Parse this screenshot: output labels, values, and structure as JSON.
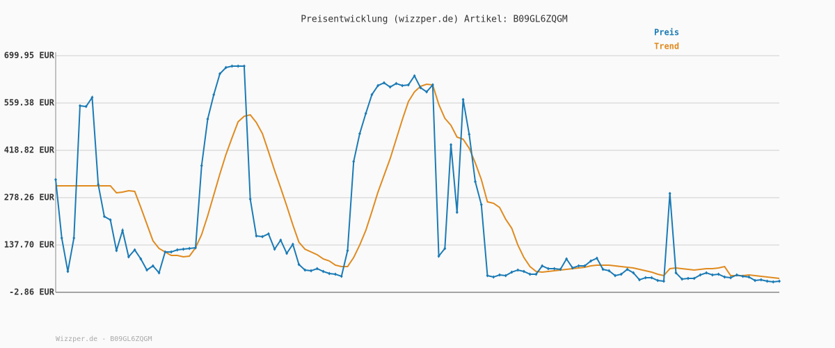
{
  "chart_data": {
    "type": "line",
    "title": "Preisentwicklung (wizzper.de) Artikel: B09GL6ZQGM",
    "footer": "Wizzper.de - B09GL6ZQGM",
    "grid": true,
    "legend": "top-right",
    "categories": [
      null,
      null,
      null,
      null,
      null,
      null,
      null,
      null,
      null,
      null,
      null,
      null,
      null,
      null,
      null,
      null,
      null,
      null,
      null,
      null,
      null,
      null,
      null,
      null,
      null,
      null,
      null,
      null,
      null,
      null,
      null,
      null,
      null,
      null,
      null,
      null,
      null,
      null,
      null,
      null,
      null,
      null,
      null,
      null,
      null,
      null,
      null,
      null,
      null,
      null,
      null,
      null,
      null,
      null,
      null,
      null,
      null,
      null,
      null,
      null,
      null,
      null,
      null,
      null,
      null,
      null,
      null,
      null,
      null,
      null,
      null,
      null,
      null,
      null,
      null,
      null,
      null,
      null,
      null,
      null,
      null,
      null,
      null,
      null,
      null,
      null,
      null,
      null,
      null,
      null,
      null,
      null,
      null,
      null,
      null,
      null,
      null,
      null,
      null,
      null,
      null,
      null,
      null,
      null,
      null,
      null,
      null,
      null,
      null,
      null,
      null,
      null,
      null,
      null,
      null,
      null,
      null,
      null,
      null,
      null
    ],
    "ylim": [
      -2.86,
      699.95
    ],
    "yticks": [
      {
        "value": -2.86,
        "label": "-2.86 EUR"
      },
      {
        "value": 137.7,
        "label": "137.70 EUR"
      },
      {
        "value": 278.26,
        "label": "278.26 EUR"
      },
      {
        "value": 418.82,
        "label": "418.82 EUR"
      },
      {
        "value": 559.38,
        "label": "559.38 EUR"
      },
      {
        "value": 699.95,
        "label": "699.95 EUR"
      }
    ],
    "series": [
      {
        "name": "Preis",
        "color": "#1a7ab5",
        "markers": true,
        "values": [
          332.0,
          158.4,
          59.2,
          158.4,
          551.1,
          549.0,
          575.9,
          317.5,
          222.4,
          212.1,
          121.2,
          181.1,
          102.6,
          123.2,
          96.4,
          63.3,
          75.7,
          55.0,
          117.0,
          117.0,
          123.2,
          125.3,
          127.4,
          129.4,
          373.3,
          511.8,
          584.2,
          646.2,
          664.8,
          668.9,
          668.9,
          668.9,
          274.1,
          164.6,
          162.5,
          170.8,
          125.3,
          152.2,
          112.9,
          139.8,
          79.8,
          63.3,
          61.2,
          67.4,
          59.2,
          53.0,
          50.9,
          44.7,
          121.2,
          385.7,
          468.4,
          528.4,
          584.2,
          611.1,
          619.3,
          606.9,
          617.3,
          611.1,
          613.1,
          640.0,
          604.8,
          592.5,
          613.1,
          104.6,
          127.4,
          435.4,
          234.8,
          569.7,
          466.4,
          325.8,
          257.6,
          46.7,
          42.6,
          48.8,
          46.7,
          57.1,
          63.3,
          59.2,
          50.9,
          50.9,
          75.7,
          67.4,
          67.4,
          65.4,
          96.4,
          69.5,
          75.7,
          75.7,
          90.2,
          98.4,
          65.4,
          61.2,
          46.7,
          50.9,
          65.4,
          55.0,
          34.3,
          40.6,
          40.6,
          32.3,
          30.2,
          290.7,
          55.0,
          36.4,
          38.5,
          38.5,
          48.8,
          55.0,
          48.8,
          50.9,
          42.6,
          40.6,
          48.8,
          44.7,
          42.6,
          32.3,
          34.3,
          30.2,
          28.1,
          30.2
        ]
      },
      {
        "name": "Trend",
        "color": "#e08a1e",
        "markers": false,
        "values": [
          313.4,
          313.4,
          313.4,
          313.4,
          313.4,
          313.4,
          313.4,
          313.4,
          313.4,
          313.4,
          292.7,
          294.8,
          298.9,
          296.9,
          249.3,
          199.7,
          150.1,
          127.4,
          117.0,
          106.7,
          106.7,
          102.6,
          104.6,
          129.4,
          168.7,
          224.5,
          286.5,
          348.5,
          406.4,
          456.0,
          503.6,
          520.1,
          524.3,
          501.5,
          468.4,
          414.7,
          358.9,
          307.2,
          253.5,
          197.6,
          146.0,
          125.3,
          117.0,
          108.8,
          96.4,
          90.2,
          77.8,
          73.6,
          73.6,
          100.5,
          137.7,
          181.1,
          236.9,
          294.8,
          344.4,
          394.0,
          451.9,
          509.8,
          563.5,
          592.5,
          609.0,
          615.2,
          613.1,
          555.2,
          513.9,
          493.2,
          458.1,
          451.9,
          425.0,
          381.6,
          332.0,
          265.9,
          261.7,
          249.3,
          214.2,
          187.3,
          137.7,
          100.5,
          73.6,
          59.2,
          57.1,
          59.2,
          61.2,
          63.3,
          65.4,
          67.4,
          69.5,
          71.6,
          75.7,
          77.8,
          77.8,
          77.8,
          75.7,
          73.6,
          71.6,
          69.5,
          65.4,
          61.2,
          57.1,
          50.9,
          46.7,
          67.4,
          69.5,
          67.4,
          65.4,
          63.3,
          65.4,
          67.4,
          67.4,
          69.5,
          73.6,
          46.7,
          46.7,
          46.7,
          48.8,
          46.7,
          44.7,
          42.6,
          40.6,
          38.5
        ]
      }
    ]
  }
}
